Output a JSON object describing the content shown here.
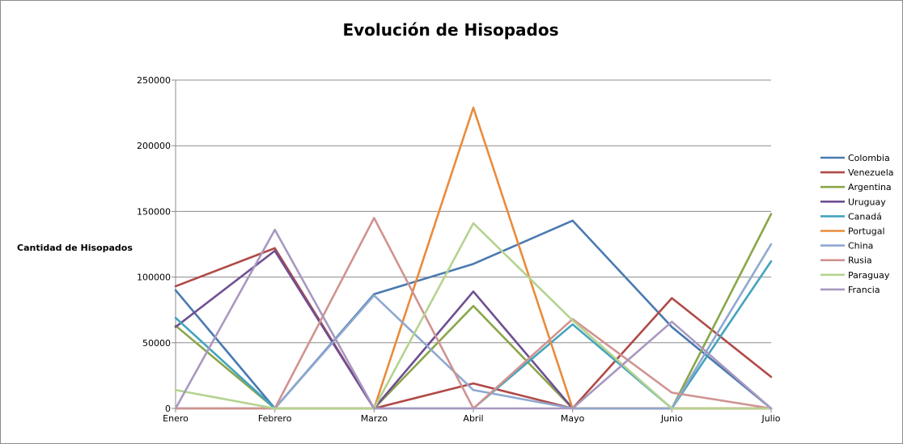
{
  "chart_data": {
    "type": "line",
    "title": "Evolución de Hisopados",
    "xlabel": "",
    "ylabel": "Cantidad de Hisopados",
    "ylim": [
      0,
      250000
    ],
    "yticks": [
      0,
      50000,
      100000,
      150000,
      200000,
      250000
    ],
    "ytick_labels": [
      "0",
      "50000",
      "100000",
      "150000",
      "200000",
      "250000"
    ],
    "grid": true,
    "legend_position": "right",
    "categories": [
      "Enero",
      "Febrero",
      "Marzo",
      "Abril",
      "Mayo",
      "Junio",
      "Julio"
    ],
    "series": [
      {
        "name": "Colombia",
        "color": "#4a7ab0",
        "values": [
          90000,
          0,
          87000,
          110000,
          143000,
          62000,
          0
        ]
      },
      {
        "name": "Venezuela",
        "color": "#b04a47",
        "values": [
          93000,
          122000,
          0,
          19000,
          0,
          84000,
          24000
        ]
      },
      {
        "name": "Argentina",
        "color": "#8aa64a",
        "values": [
          63000,
          0,
          0,
          78000,
          0,
          0,
          148000
        ]
      },
      {
        "name": "Uruguay",
        "color": "#6f4f91",
        "values": [
          62000,
          120000,
          0,
          89000,
          0,
          0,
          0
        ]
      },
      {
        "name": "Canadá",
        "color": "#43a4bd",
        "values": [
          69000,
          0,
          0,
          0,
          64000,
          0,
          112000
        ]
      },
      {
        "name": "Portugal",
        "color": "#e98b3c",
        "values": [
          0,
          0,
          0,
          229000,
          0,
          0,
          0
        ]
      },
      {
        "name": "China",
        "color": "#8ea8d0",
        "values": [
          0,
          0,
          86000,
          14000,
          0,
          0,
          125000
        ]
      },
      {
        "name": "Rusia",
        "color": "#d09391",
        "values": [
          0,
          0,
          145000,
          0,
          68000,
          12000,
          0
        ]
      },
      {
        "name": "Paraguay",
        "color": "#b5d38f",
        "values": [
          14000,
          0,
          0,
          141000,
          67000,
          0,
          0
        ]
      },
      {
        "name": "Francia",
        "color": "#a898c0",
        "values": [
          0,
          136000,
          0,
          0,
          0,
          66000,
          0
        ]
      }
    ]
  }
}
